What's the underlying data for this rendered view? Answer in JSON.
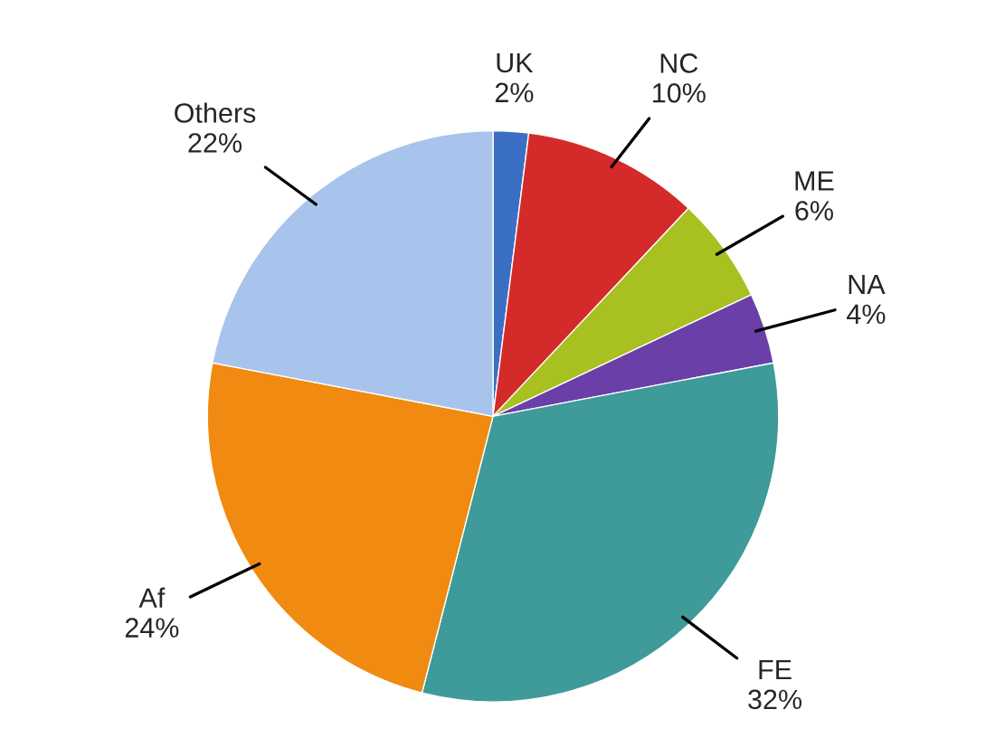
{
  "chart_data": {
    "type": "pie",
    "categories": [
      "UK",
      "NC",
      "ME",
      "NA",
      "FE",
      "Af",
      "Others"
    ],
    "values": [
      2,
      10,
      6,
      4,
      32,
      24,
      22
    ],
    "value_labels": [
      "2%",
      "10%",
      "6%",
      "4%",
      "32%",
      "24%",
      "22%"
    ],
    "colors": [
      "#3a6fc4",
      "#d42a2a",
      "#a8c020",
      "#6a3fa8",
      "#3f9a9a",
      "#f08a10",
      "#a8c4ec"
    ]
  }
}
